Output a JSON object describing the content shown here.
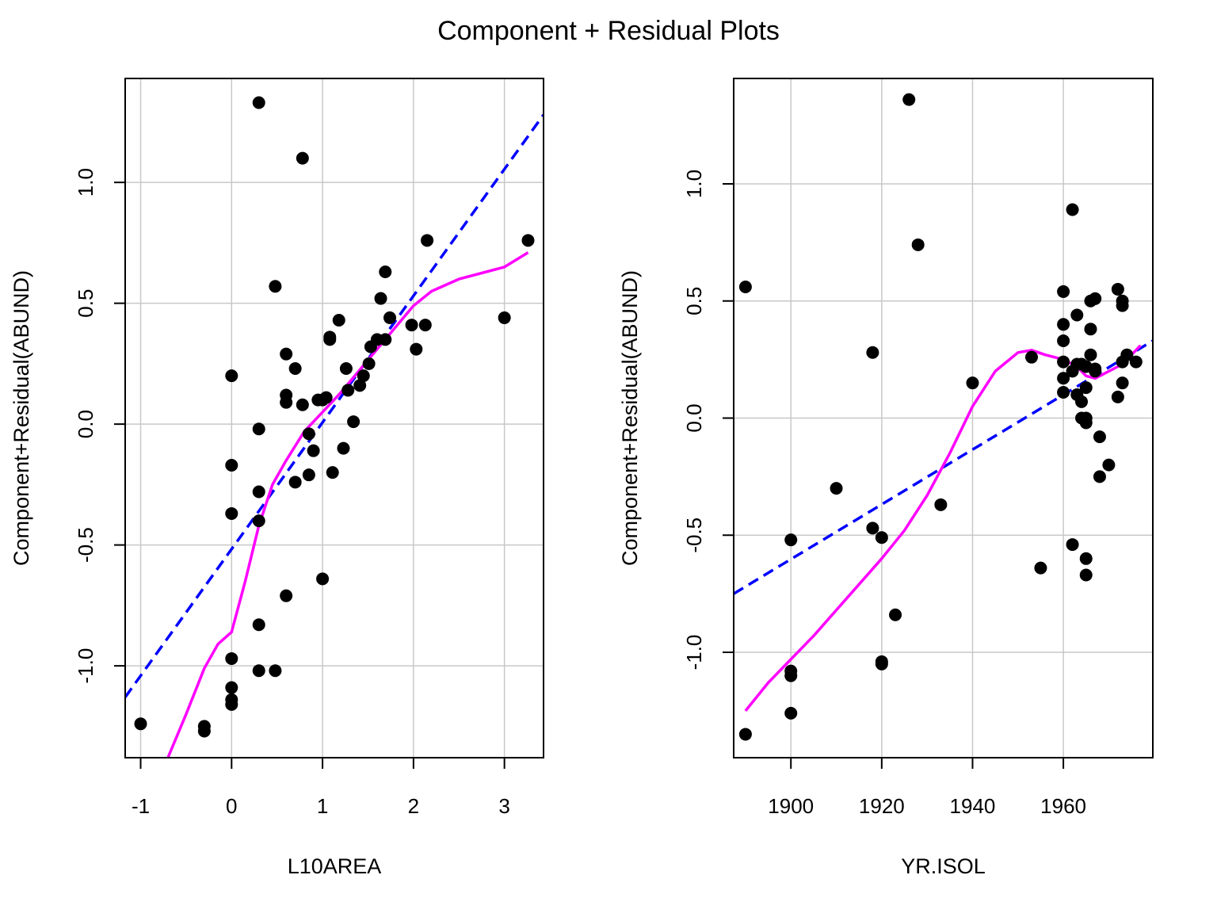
{
  "title": "Component + Residual Plots",
  "colors": {
    "points": "#000000",
    "fit_line": "#0000ff",
    "smooth_line": "#ff00ff",
    "grid": "#c8c8c8"
  },
  "chart_data": [
    {
      "type": "scatter",
      "xlabel": "L10AREA",
      "ylabel": "Component+Residual(ABUND)",
      "xlim": [
        -1.17,
        3.43
      ],
      "ylim": [
        -1.38,
        1.43
      ],
      "xticks": [
        -1,
        0,
        1,
        2,
        3
      ],
      "xtick_labels": [
        "-1",
        "0",
        "1",
        "2",
        "3"
      ],
      "yticks": [
        -1.0,
        -0.5,
        0.0,
        0.5,
        1.0
      ],
      "ytick_labels": [
        "-1.0",
        "-0.5",
        "0.0",
        "0.5",
        "1.0"
      ],
      "grid": true,
      "points": [
        [
          -1.0,
          -1.24
        ],
        [
          -0.3,
          -1.25
        ],
        [
          -0.3,
          -1.27
        ],
        [
          0.0,
          0.2
        ],
        [
          0.0,
          -0.17
        ],
        [
          0.0,
          -0.37
        ],
        [
          0.0,
          -0.97
        ],
        [
          0.0,
          -1.09
        ],
        [
          0.0,
          -1.14
        ],
        [
          0.0,
          -1.16
        ],
        [
          0.3,
          1.33
        ],
        [
          0.3,
          -0.02
        ],
        [
          0.3,
          -0.28
        ],
        [
          0.3,
          -0.4
        ],
        [
          0.3,
          -0.83
        ],
        [
          0.3,
          -1.02
        ],
        [
          0.48,
          0.57
        ],
        [
          0.48,
          -1.02
        ],
        [
          0.6,
          0.29
        ],
        [
          0.6,
          0.12
        ],
        [
          0.6,
          0.09
        ],
        [
          0.6,
          -0.71
        ],
        [
          0.7,
          0.23
        ],
        [
          0.7,
          -0.24
        ],
        [
          0.78,
          1.1
        ],
        [
          0.78,
          0.08
        ],
        [
          0.85,
          -0.04
        ],
        [
          0.85,
          -0.21
        ],
        [
          0.9,
          -0.11
        ],
        [
          0.95,
          0.1
        ],
        [
          1.0,
          0.1
        ],
        [
          1.0,
          -0.64
        ],
        [
          1.04,
          0.11
        ],
        [
          1.08,
          0.36
        ],
        [
          1.08,
          0.35
        ],
        [
          1.11,
          -0.2
        ],
        [
          1.18,
          0.43
        ],
        [
          1.23,
          -0.1
        ],
        [
          1.26,
          0.23
        ],
        [
          1.28,
          0.14
        ],
        [
          1.34,
          0.01
        ],
        [
          1.41,
          0.16
        ],
        [
          1.45,
          0.2
        ],
        [
          1.51,
          0.25
        ],
        [
          1.53,
          0.32
        ],
        [
          1.6,
          0.35
        ],
        [
          1.64,
          0.52
        ],
        [
          1.69,
          0.63
        ],
        [
          1.69,
          0.35
        ],
        [
          1.74,
          0.44
        ],
        [
          1.98,
          0.41
        ],
        [
          2.03,
          0.31
        ],
        [
          2.13,
          0.41
        ],
        [
          2.15,
          0.76
        ],
        [
          3.0,
          0.44
        ],
        [
          3.26,
          0.76
        ]
      ],
      "fit_line": [
        [
          -1.17,
          -1.13
        ],
        [
          3.43,
          1.28
        ]
      ],
      "smooth_line": [
        [
          -0.7,
          -1.38
        ],
        [
          -0.5,
          -1.2
        ],
        [
          -0.3,
          -1.01
        ],
        [
          -0.15,
          -0.91
        ],
        [
          0.0,
          -0.86
        ],
        [
          0.15,
          -0.65
        ],
        [
          0.3,
          -0.42
        ],
        [
          0.45,
          -0.25
        ],
        [
          0.6,
          -0.15
        ],
        [
          0.8,
          -0.03
        ],
        [
          1.0,
          0.05
        ],
        [
          1.2,
          0.13
        ],
        [
          1.4,
          0.22
        ],
        [
          1.6,
          0.31
        ],
        [
          1.8,
          0.4
        ],
        [
          2.0,
          0.49
        ],
        [
          2.2,
          0.55
        ],
        [
          2.5,
          0.6
        ],
        [
          2.8,
          0.63
        ],
        [
          3.0,
          0.65
        ],
        [
          3.26,
          0.71
        ]
      ]
    },
    {
      "type": "scatter",
      "xlabel": "YR.ISOL",
      "ylabel": "Component+Residual(ABUND)",
      "xlim": [
        1887.4,
        1979.7
      ],
      "ylim": [
        -1.45,
        1.45
      ],
      "xticks": [
        1900,
        1920,
        1940,
        1960
      ],
      "xtick_labels": [
        "1900",
        "1920",
        "1940",
        "1960"
      ],
      "yticks": [
        -1.0,
        -0.5,
        0.0,
        0.5,
        1.0
      ],
      "ytick_labels": [
        "-1.0",
        "-0.5",
        "0.0",
        "0.5",
        "1.0"
      ],
      "grid": true,
      "points": [
        [
          1890,
          0.56
        ],
        [
          1890,
          -1.35
        ],
        [
          1900,
          -0.52
        ],
        [
          1900,
          -1.08
        ],
        [
          1900,
          -1.1
        ],
        [
          1900,
          -1.26
        ],
        [
          1910,
          -0.3
        ],
        [
          1918,
          0.28
        ],
        [
          1918,
          -0.47
        ],
        [
          1920,
          -0.51
        ],
        [
          1920,
          -1.04
        ],
        [
          1920,
          -1.05
        ],
        [
          1923,
          -0.84
        ],
        [
          1926,
          1.36
        ],
        [
          1928,
          0.74
        ],
        [
          1933,
          -0.37
        ],
        [
          1940,
          0.15
        ],
        [
          1953,
          0.26
        ],
        [
          1955,
          -0.64
        ],
        [
          1960,
          0.54
        ],
        [
          1960,
          0.4
        ],
        [
          1960,
          0.33
        ],
        [
          1960,
          0.24
        ],
        [
          1960,
          0.17
        ],
        [
          1960,
          0.11
        ],
        [
          1962,
          0.89
        ],
        [
          1962,
          0.2
        ],
        [
          1962,
          -0.54
        ],
        [
          1963,
          0.44
        ],
        [
          1963,
          0.23
        ],
        [
          1963,
          0.1
        ],
        [
          1964,
          0.07
        ],
        [
          1964,
          0.0
        ],
        [
          1964,
          0.23
        ],
        [
          1965,
          0.22
        ],
        [
          1965,
          0.13
        ],
        [
          1965,
          0.0
        ],
        [
          1965,
          -0.02
        ],
        [
          1965,
          -0.6
        ],
        [
          1965,
          -0.67
        ],
        [
          1966,
          0.5
        ],
        [
          1966,
          0.38
        ],
        [
          1966,
          0.27
        ],
        [
          1967,
          0.51
        ],
        [
          1967,
          0.21
        ],
        [
          1967,
          0.2
        ],
        [
          1968,
          -0.08
        ],
        [
          1968,
          -0.25
        ],
        [
          1970,
          -0.2
        ],
        [
          1972,
          0.55
        ],
        [
          1972,
          0.09
        ],
        [
          1973,
          0.5
        ],
        [
          1973,
          0.48
        ],
        [
          1973,
          0.24
        ],
        [
          1973,
          0.15
        ],
        [
          1974,
          0.27
        ],
        [
          1976,
          0.24
        ]
      ],
      "fit_line": [
        [
          1887.4,
          -0.75
        ],
        [
          1979.7,
          0.33
        ]
      ],
      "smooth_line": [
        [
          1890,
          -1.25
        ],
        [
          1895,
          -1.13
        ],
        [
          1900,
          -1.03
        ],
        [
          1905,
          -0.93
        ],
        [
          1910,
          -0.82
        ],
        [
          1915,
          -0.71
        ],
        [
          1920,
          -0.6
        ],
        [
          1925,
          -0.48
        ],
        [
          1930,
          -0.33
        ],
        [
          1935,
          -0.15
        ],
        [
          1940,
          0.05
        ],
        [
          1945,
          0.2
        ],
        [
          1950,
          0.28
        ],
        [
          1953,
          0.29
        ],
        [
          1956,
          0.27
        ],
        [
          1960,
          0.25
        ],
        [
          1963,
          0.22
        ],
        [
          1965,
          0.18
        ],
        [
          1967,
          0.17
        ],
        [
          1969,
          0.19
        ],
        [
          1972,
          0.22
        ],
        [
          1975,
          0.27
        ],
        [
          1977,
          0.31
        ]
      ]
    }
  ]
}
